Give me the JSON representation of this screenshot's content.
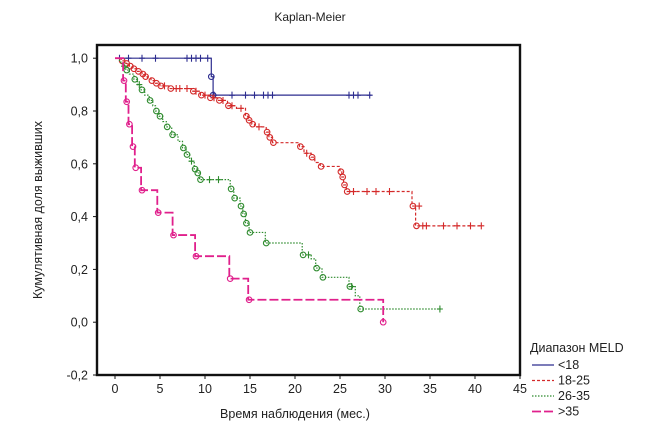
{
  "chart_data": {
    "type": "line",
    "title": "Kaplan-Meier",
    "xlabel": "Время наблюдения (мес.)",
    "ylabel": "Кумулятивная доля выживших",
    "xlim": [
      -2,
      45
    ],
    "ylim": [
      -0.2,
      1.05
    ],
    "xticks": [
      0,
      5,
      10,
      15,
      20,
      25,
      30,
      35,
      40,
      45
    ],
    "yticks": [
      -0.2,
      0.0,
      0.2,
      0.4,
      0.6,
      0.8,
      1.0
    ],
    "xtick_labels": [
      "0",
      "5",
      "10",
      "15",
      "20",
      "25",
      "30",
      "35",
      "40",
      "45"
    ],
    "ytick_labels": [
      "-0,2",
      "0,0",
      "0,2",
      "0,4",
      "0,6",
      "0,8",
      "1,0"
    ],
    "legend_title": "Диапазон MELD",
    "legend_position": "bottom-right",
    "series": [
      {
        "name": "<18",
        "color": "#2d2d8f",
        "dash": "none",
        "steps": [
          [
            0,
            1.0
          ],
          [
            10.7,
            0.93
          ],
          [
            10.9,
            0.86
          ],
          [
            28.5,
            0.86
          ]
        ],
        "events": [
          [
            10.7,
            0.93
          ],
          [
            10.9,
            0.86
          ]
        ],
        "censored": [
          [
            0.5,
            1.0
          ],
          [
            1.5,
            1.0
          ],
          [
            3,
            1.0
          ],
          [
            4.5,
            1.0
          ],
          [
            8,
            1.0
          ],
          [
            8.5,
            1.0
          ],
          [
            9,
            1.0
          ],
          [
            9.5,
            1.0
          ],
          [
            10.3,
            1.0
          ],
          [
            11,
            0.86
          ],
          [
            13,
            0.86
          ],
          [
            14.5,
            0.86
          ],
          [
            15.5,
            0.86
          ],
          [
            16.5,
            0.86
          ],
          [
            17,
            0.86
          ],
          [
            17.5,
            0.86
          ],
          [
            26,
            0.86
          ],
          [
            26.5,
            0.86
          ],
          [
            27,
            0.86
          ],
          [
            28.3,
            0.86
          ]
        ]
      },
      {
        "name": "18-25",
        "color": "#d42a2a",
        "dash": "3 2",
        "steps": [
          [
            0,
            1.0
          ],
          [
            0.7,
            0.99
          ],
          [
            1.2,
            0.98
          ],
          [
            1.6,
            0.97
          ],
          [
            2.0,
            0.96
          ],
          [
            2.5,
            0.95
          ],
          [
            3.0,
            0.94
          ],
          [
            3.3,
            0.93
          ],
          [
            3.6,
            0.925
          ],
          [
            4.0,
            0.915
          ],
          [
            4.5,
            0.905
          ],
          [
            5.0,
            0.895
          ],
          [
            6.0,
            0.885
          ],
          [
            8.5,
            0.875
          ],
          [
            9.5,
            0.86
          ],
          [
            10.5,
            0.85
          ],
          [
            11.5,
            0.84
          ],
          [
            12.5,
            0.82
          ],
          [
            13.5,
            0.81
          ],
          [
            14.5,
            0.78
          ],
          [
            14.8,
            0.765
          ],
          [
            15.2,
            0.75
          ],
          [
            15.5,
            0.74
          ],
          [
            16.8,
            0.72
          ],
          [
            17.1,
            0.7
          ],
          [
            17.5,
            0.68
          ],
          [
            20.5,
            0.665
          ],
          [
            21.0,
            0.64
          ],
          [
            21.8,
            0.625
          ],
          [
            22.2,
            0.605
          ],
          [
            22.8,
            0.59
          ],
          [
            25.0,
            0.57
          ],
          [
            25.2,
            0.55
          ],
          [
            25.4,
            0.52
          ],
          [
            25.7,
            0.495
          ],
          [
            33.0,
            0.44
          ],
          [
            33.4,
            0.365
          ],
          [
            40.8,
            0.365
          ]
        ],
        "events": [
          [
            0.8,
            0.99
          ],
          [
            1.3,
            0.98
          ],
          [
            1.7,
            0.97
          ],
          [
            2.1,
            0.96
          ],
          [
            2.6,
            0.95
          ],
          [
            3.1,
            0.94
          ],
          [
            3.4,
            0.93
          ],
          [
            4.1,
            0.915
          ],
          [
            4.6,
            0.905
          ],
          [
            5.1,
            0.895
          ],
          [
            6.2,
            0.885
          ],
          [
            8.7,
            0.875
          ],
          [
            9.6,
            0.86
          ],
          [
            10.6,
            0.85
          ],
          [
            11.6,
            0.84
          ],
          [
            12.6,
            0.82
          ],
          [
            14.6,
            0.78
          ],
          [
            14.9,
            0.765
          ],
          [
            15.3,
            0.75
          ],
          [
            16.9,
            0.72
          ],
          [
            17.2,
            0.7
          ],
          [
            17.6,
            0.68
          ],
          [
            20.6,
            0.665
          ],
          [
            21.9,
            0.625
          ],
          [
            22.9,
            0.59
          ],
          [
            25.1,
            0.57
          ],
          [
            25.3,
            0.55
          ],
          [
            25.5,
            0.52
          ],
          [
            25.8,
            0.495
          ],
          [
            33.1,
            0.44
          ],
          [
            33.5,
            0.365
          ]
        ],
        "censored": [
          [
            5.5,
            0.895
          ],
          [
            6.8,
            0.885
          ],
          [
            7.2,
            0.885
          ],
          [
            8.0,
            0.885
          ],
          [
            9.0,
            0.875
          ],
          [
            10.0,
            0.86
          ],
          [
            11.0,
            0.85
          ],
          [
            12.0,
            0.84
          ],
          [
            13.0,
            0.82
          ],
          [
            14.0,
            0.81
          ],
          [
            16.0,
            0.74
          ],
          [
            21.3,
            0.64
          ],
          [
            26.5,
            0.495
          ],
          [
            28.0,
            0.495
          ],
          [
            29.0,
            0.495
          ],
          [
            30.5,
            0.495
          ],
          [
            33.8,
            0.44
          ],
          [
            34.2,
            0.365
          ],
          [
            34.6,
            0.365
          ],
          [
            36.5,
            0.365
          ],
          [
            38.0,
            0.365
          ],
          [
            39.5,
            0.365
          ],
          [
            40.7,
            0.365
          ]
        ]
      },
      {
        "name": "26-35",
        "color": "#2e8b2e",
        "dash": "1.5 1.5",
        "steps": [
          [
            0,
            1.0
          ],
          [
            0.5,
            0.985
          ],
          [
            0.8,
            0.97
          ],
          [
            1.2,
            0.955
          ],
          [
            1.6,
            0.94
          ],
          [
            2.1,
            0.92
          ],
          [
            2.5,
            0.9
          ],
          [
            2.9,
            0.88
          ],
          [
            3.3,
            0.86
          ],
          [
            3.8,
            0.84
          ],
          [
            4.2,
            0.82
          ],
          [
            4.5,
            0.8
          ],
          [
            4.9,
            0.78
          ],
          [
            5.3,
            0.76
          ],
          [
            5.7,
            0.74
          ],
          [
            6.3,
            0.71
          ],
          [
            7.0,
            0.685
          ],
          [
            7.5,
            0.66
          ],
          [
            7.9,
            0.635
          ],
          [
            8.3,
            0.61
          ],
          [
            8.8,
            0.58
          ],
          [
            9.1,
            0.565
          ],
          [
            9.4,
            0.54
          ],
          [
            12.8,
            0.505
          ],
          [
            13.2,
            0.47
          ],
          [
            13.9,
            0.44
          ],
          [
            14.2,
            0.41
          ],
          [
            14.5,
            0.375
          ],
          [
            14.9,
            0.34
          ],
          [
            16.7,
            0.3
          ],
          [
            20.8,
            0.255
          ],
          [
            21.8,
            0.24
          ],
          [
            22.3,
            0.205
          ],
          [
            23.0,
            0.17
          ],
          [
            26.0,
            0.135
          ],
          [
            26.7,
            0.1
          ],
          [
            27.2,
            0.05
          ],
          [
            36.2,
            0.05
          ]
        ],
        "events": [
          [
            1.3,
            0.955
          ],
          [
            2.2,
            0.92
          ],
          [
            3.0,
            0.88
          ],
          [
            3.9,
            0.84
          ],
          [
            4.6,
            0.8
          ],
          [
            5.0,
            0.78
          ],
          [
            5.8,
            0.74
          ],
          [
            6.4,
            0.71
          ],
          [
            7.6,
            0.66
          ],
          [
            8.0,
            0.635
          ],
          [
            8.9,
            0.58
          ],
          [
            9.2,
            0.565
          ],
          [
            9.5,
            0.54
          ],
          [
            12.9,
            0.505
          ],
          [
            13.3,
            0.47
          ],
          [
            14.0,
            0.44
          ],
          [
            14.3,
            0.41
          ],
          [
            14.6,
            0.375
          ],
          [
            15.0,
            0.34
          ],
          [
            16.8,
            0.3
          ],
          [
            20.9,
            0.255
          ],
          [
            22.4,
            0.205
          ],
          [
            23.1,
            0.17
          ],
          [
            26.1,
            0.135
          ],
          [
            27.3,
            0.05
          ]
        ],
        "censored": [
          [
            1.0,
            0.97
          ],
          [
            2.7,
            0.9
          ],
          [
            8.5,
            0.61
          ],
          [
            10.5,
            0.54
          ],
          [
            11.5,
            0.54
          ],
          [
            21.5,
            0.255
          ],
          [
            26.3,
            0.135
          ],
          [
            36.1,
            0.05
          ]
        ]
      },
      {
        "name": ">35",
        "color": "#e0208c",
        "dash": "9 3",
        "steps": [
          [
            0,
            1.0
          ],
          [
            0.9,
            0.915
          ],
          [
            1.2,
            0.835
          ],
          [
            1.5,
            0.75
          ],
          [
            1.9,
            0.665
          ],
          [
            2.2,
            0.585
          ],
          [
            2.9,
            0.5
          ],
          [
            4.7,
            0.415
          ],
          [
            6.4,
            0.33
          ],
          [
            8.9,
            0.25
          ],
          [
            12.7,
            0.165
          ],
          [
            14.8,
            0.085
          ],
          [
            29.8,
            0.0
          ]
        ],
        "events": [
          [
            1.0,
            0.915
          ],
          [
            1.3,
            0.835
          ],
          [
            1.6,
            0.75
          ],
          [
            2.0,
            0.665
          ],
          [
            2.3,
            0.585
          ],
          [
            3.0,
            0.5
          ],
          [
            4.8,
            0.415
          ],
          [
            6.5,
            0.33
          ],
          [
            9.0,
            0.25
          ],
          [
            12.8,
            0.165
          ],
          [
            14.9,
            0.085
          ],
          [
            29.8,
            0.0
          ]
        ],
        "censored": []
      }
    ]
  }
}
